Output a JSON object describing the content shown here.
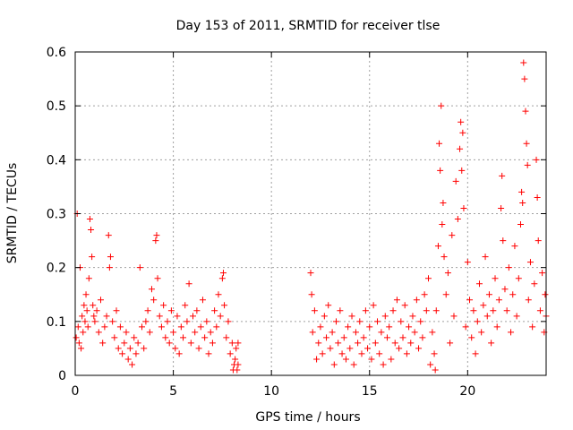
{
  "chart_data": {
    "type": "scatter",
    "title": "Day 153 of 2011, SRMTID for receiver tlse",
    "xlabel": "GPS time / hours",
    "ylabel": "SRMTID / TECUs",
    "xlim": [
      0,
      24
    ],
    "ylim": [
      0,
      0.6
    ],
    "xticks": [
      0,
      5,
      10,
      15,
      20
    ],
    "xtick_labels": [
      "0",
      "5",
      "10",
      "15",
      "20"
    ],
    "yticks": [
      0,
      0.1,
      0.2,
      0.3,
      0.4,
      0.5,
      0.6
    ],
    "ytick_labels": [
      "0",
      "0.1",
      "0.2",
      "0.3",
      "0.4",
      "0.5",
      "0.6"
    ],
    "grid": true,
    "marker": "plus",
    "color": "#ff0000",
    "series": [
      {
        "name": "SRMTID",
        "points": [
          [
            0.05,
            0.07
          ],
          [
            0.1,
            0.3
          ],
          [
            0.15,
            0.09
          ],
          [
            0.2,
            0.06
          ],
          [
            0.25,
            0.2
          ],
          [
            0.3,
            0.05
          ],
          [
            0.35,
            0.11
          ],
          [
            0.4,
            0.08
          ],
          [
            0.45,
            0.13
          ],
          [
            0.5,
            0.1
          ],
          [
            0.55,
            0.15
          ],
          [
            0.6,
            0.12
          ],
          [
            0.65,
            0.09
          ],
          [
            0.7,
            0.18
          ],
          [
            0.75,
            0.29
          ],
          [
            0.8,
            0.27
          ],
          [
            0.85,
            0.22
          ],
          [
            0.9,
            0.13
          ],
          [
            0.95,
            0.11
          ],
          [
            1.0,
            0.1
          ],
          [
            1.1,
            0.12
          ],
          [
            1.2,
            0.08
          ],
          [
            1.3,
            0.14
          ],
          [
            1.4,
            0.06
          ],
          [
            1.5,
            0.09
          ],
          [
            1.6,
            0.11
          ],
          [
            1.7,
            0.26
          ],
          [
            1.75,
            0.2
          ],
          [
            1.8,
            0.22
          ],
          [
            1.9,
            0.1
          ],
          [
            2.0,
            0.07
          ],
          [
            2.1,
            0.12
          ],
          [
            2.2,
            0.05
          ],
          [
            2.3,
            0.09
          ],
          [
            2.4,
            0.04
          ],
          [
            2.5,
            0.06
          ],
          [
            2.6,
            0.08
          ],
          [
            2.7,
            0.03
          ],
          [
            2.8,
            0.05
          ],
          [
            2.9,
            0.02
          ],
          [
            3.0,
            0.07
          ],
          [
            3.1,
            0.04
          ],
          [
            3.2,
            0.06
          ],
          [
            3.3,
            0.2
          ],
          [
            3.4,
            0.09
          ],
          [
            3.5,
            0.05
          ],
          [
            3.6,
            0.1
          ],
          [
            3.7,
            0.12
          ],
          [
            3.8,
            0.08
          ],
          [
            3.9,
            0.16
          ],
          [
            4.0,
            0.14
          ],
          [
            4.1,
            0.25
          ],
          [
            4.15,
            0.26
          ],
          [
            4.2,
            0.18
          ],
          [
            4.3,
            0.11
          ],
          [
            4.4,
            0.09
          ],
          [
            4.5,
            0.13
          ],
          [
            4.6,
            0.07
          ],
          [
            4.7,
            0.1
          ],
          [
            4.8,
            0.06
          ],
          [
            4.9,
            0.12
          ],
          [
            5.0,
            0.08
          ],
          [
            5.1,
            0.05
          ],
          [
            5.2,
            0.11
          ],
          [
            5.3,
            0.04
          ],
          [
            5.4,
            0.09
          ],
          [
            5.5,
            0.07
          ],
          [
            5.6,
            0.13
          ],
          [
            5.7,
            0.1
          ],
          [
            5.8,
            0.17
          ],
          [
            5.9,
            0.06
          ],
          [
            6.0,
            0.11
          ],
          [
            6.1,
            0.08
          ],
          [
            6.2,
            0.12
          ],
          [
            6.3,
            0.05
          ],
          [
            6.4,
            0.09
          ],
          [
            6.5,
            0.14
          ],
          [
            6.6,
            0.07
          ],
          [
            6.7,
            0.1
          ],
          [
            6.8,
            0.04
          ],
          [
            6.9,
            0.08
          ],
          [
            7.0,
            0.06
          ],
          [
            7.1,
            0.12
          ],
          [
            7.2,
            0.09
          ],
          [
            7.3,
            0.15
          ],
          [
            7.4,
            0.11
          ],
          [
            7.5,
            0.18
          ],
          [
            7.55,
            0.19
          ],
          [
            7.6,
            0.13
          ],
          [
            7.7,
            0.07
          ],
          [
            7.8,
            0.1
          ],
          [
            7.9,
            0.04
          ],
          [
            8.0,
            0.06
          ],
          [
            8.05,
            0.01
          ],
          [
            8.1,
            0.02
          ],
          [
            8.15,
            0.03
          ],
          [
            8.2,
            0.05
          ],
          [
            8.25,
            0.01
          ],
          [
            8.3,
            0.06
          ],
          [
            8.3,
            0.02
          ],
          [
            12.0,
            0.19
          ],
          [
            12.05,
            0.15
          ],
          [
            12.1,
            0.08
          ],
          [
            12.2,
            0.12
          ],
          [
            12.3,
            0.03
          ],
          [
            12.4,
            0.06
          ],
          [
            12.5,
            0.09
          ],
          [
            12.6,
            0.04
          ],
          [
            12.7,
            0.11
          ],
          [
            12.8,
            0.07
          ],
          [
            12.9,
            0.13
          ],
          [
            13.0,
            0.05
          ],
          [
            13.1,
            0.08
          ],
          [
            13.2,
            0.02
          ],
          [
            13.3,
            0.1
          ],
          [
            13.4,
            0.06
          ],
          [
            13.5,
            0.12
          ],
          [
            13.6,
            0.04
          ],
          [
            13.7,
            0.07
          ],
          [
            13.8,
            0.03
          ],
          [
            13.9,
            0.09
          ],
          [
            14.0,
            0.05
          ],
          [
            14.1,
            0.11
          ],
          [
            14.2,
            0.02
          ],
          [
            14.3,
            0.08
          ],
          [
            14.4,
            0.06
          ],
          [
            14.5,
            0.1
          ],
          [
            14.6,
            0.04
          ],
          [
            14.7,
            0.07
          ],
          [
            14.8,
            0.12
          ],
          [
            14.9,
            0.05
          ],
          [
            15.0,
            0.09
          ],
          [
            15.1,
            0.03
          ],
          [
            15.2,
            0.13
          ],
          [
            15.3,
            0.06
          ],
          [
            15.4,
            0.1
          ],
          [
            15.5,
            0.04
          ],
          [
            15.6,
            0.08
          ],
          [
            15.7,
            0.02
          ],
          [
            15.8,
            0.11
          ],
          [
            15.9,
            0.07
          ],
          [
            16.0,
            0.09
          ],
          [
            16.1,
            0.03
          ],
          [
            16.2,
            0.12
          ],
          [
            16.3,
            0.06
          ],
          [
            16.4,
            0.14
          ],
          [
            16.5,
            0.05
          ],
          [
            16.6,
            0.1
          ],
          [
            16.7,
            0.07
          ],
          [
            16.8,
            0.13
          ],
          [
            16.9,
            0.04
          ],
          [
            17.0,
            0.09
          ],
          [
            17.1,
            0.06
          ],
          [
            17.2,
            0.11
          ],
          [
            17.3,
            0.08
          ],
          [
            17.4,
            0.14
          ],
          [
            17.5,
            0.05
          ],
          [
            17.6,
            0.1
          ],
          [
            17.7,
            0.07
          ],
          [
            17.8,
            0.15
          ],
          [
            17.9,
            0.12
          ],
          [
            18.0,
            0.18
          ],
          [
            18.1,
            0.02
          ],
          [
            18.2,
            0.08
          ],
          [
            18.3,
            0.04
          ],
          [
            18.35,
            0.01
          ],
          [
            18.4,
            0.12
          ],
          [
            18.5,
            0.24
          ],
          [
            18.55,
            0.43
          ],
          [
            18.6,
            0.38
          ],
          [
            18.65,
            0.5
          ],
          [
            18.7,
            0.28
          ],
          [
            18.75,
            0.32
          ],
          [
            18.8,
            0.22
          ],
          [
            18.9,
            0.15
          ],
          [
            19.0,
            0.19
          ],
          [
            19.1,
            0.06
          ],
          [
            19.2,
            0.26
          ],
          [
            19.3,
            0.11
          ],
          [
            19.4,
            0.36
          ],
          [
            19.5,
            0.29
          ],
          [
            19.6,
            0.42
          ],
          [
            19.65,
            0.47
          ],
          [
            19.7,
            0.38
          ],
          [
            19.75,
            0.45
          ],
          [
            19.8,
            0.31
          ],
          [
            19.9,
            0.09
          ],
          [
            20.0,
            0.21
          ],
          [
            20.1,
            0.14
          ],
          [
            20.2,
            0.07
          ],
          [
            20.3,
            0.12
          ],
          [
            20.4,
            0.04
          ],
          [
            20.5,
            0.1
          ],
          [
            20.6,
            0.17
          ],
          [
            20.7,
            0.08
          ],
          [
            20.8,
            0.13
          ],
          [
            20.9,
            0.22
          ],
          [
            21.0,
            0.11
          ],
          [
            21.1,
            0.15
          ],
          [
            21.2,
            0.06
          ],
          [
            21.3,
            0.12
          ],
          [
            21.4,
            0.18
          ],
          [
            21.5,
            0.09
          ],
          [
            21.6,
            0.14
          ],
          [
            21.7,
            0.31
          ],
          [
            21.75,
            0.37
          ],
          [
            21.8,
            0.25
          ],
          [
            21.9,
            0.16
          ],
          [
            22.0,
            0.12
          ],
          [
            22.1,
            0.2
          ],
          [
            22.2,
            0.08
          ],
          [
            22.3,
            0.15
          ],
          [
            22.4,
            0.24
          ],
          [
            22.5,
            0.11
          ],
          [
            22.6,
            0.18
          ],
          [
            22.7,
            0.28
          ],
          [
            22.75,
            0.34
          ],
          [
            22.8,
            0.32
          ],
          [
            22.85,
            0.58
          ],
          [
            22.9,
            0.55
          ],
          [
            22.95,
            0.49
          ],
          [
            23.0,
            0.43
          ],
          [
            23.05,
            0.39
          ],
          [
            23.1,
            0.14
          ],
          [
            23.2,
            0.21
          ],
          [
            23.3,
            0.09
          ],
          [
            23.4,
            0.17
          ],
          [
            23.5,
            0.4
          ],
          [
            23.55,
            0.33
          ],
          [
            23.6,
            0.25
          ],
          [
            23.7,
            0.12
          ],
          [
            23.8,
            0.19
          ],
          [
            23.9,
            0.08
          ],
          [
            23.95,
            0.15
          ],
          [
            24.0,
            0.11
          ]
        ]
      }
    ]
  }
}
